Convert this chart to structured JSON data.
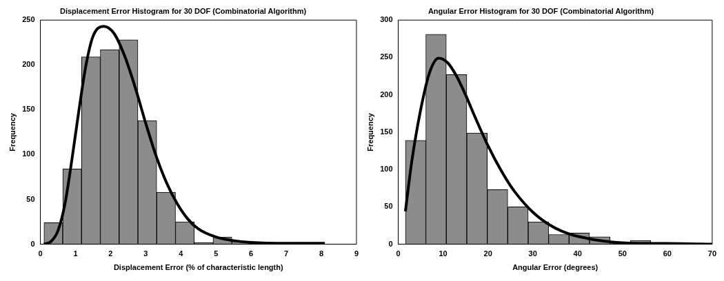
{
  "chart_data": [
    {
      "type": "histogram",
      "title": "Displacement Error Histogram for 30 DOF (Combinatorial Algorithm)",
      "xlabel": "Displacement Error (% of characteristic length)",
      "ylabel": "Frequency",
      "color": "#8c8c8c",
      "bins": [
        0.1,
        0.64,
        1.17,
        1.71,
        2.24,
        2.78,
        3.31,
        3.85,
        4.38,
        4.92,
        5.45,
        5.99,
        6.52,
        7.06,
        7.59
      ],
      "values": [
        24,
        84,
        209,
        217,
        228,
        138,
        58,
        25,
        2,
        8,
        3,
        null,
        1,
        1
      ],
      "series": [
        {
          "type": "line",
          "color": "#000000",
          "x": [
            0.1,
            0.3,
            0.5,
            0.7,
            0.9,
            1.1,
            1.3,
            1.5,
            1.8,
            2.1,
            2.4,
            2.7,
            3.0,
            3.3,
            3.6,
            3.9,
            4.2,
            4.5,
            5.0,
            5.5,
            6.0,
            7.0,
            8.1
          ],
          "values": [
            0,
            3,
            15,
            45,
            95,
            150,
            200,
            232,
            243,
            235,
            210,
            175,
            135,
            98,
            68,
            45,
            28,
            17,
            8,
            4,
            2,
            1,
            1
          ]
        }
      ],
      "xlim": [
        0,
        9
      ],
      "xticks": [
        0,
        1,
        2,
        3,
        4,
        5,
        6,
        7,
        8,
        9
      ],
      "ylim": [
        0,
        250
      ],
      "yticks": [
        0,
        50,
        100,
        150,
        200,
        250
      ],
      "grid": false,
      "legend": false
    },
    {
      "type": "histogram",
      "title": "Angular Error Histogram for 30 DOF (Combinatorial Algorithm)",
      "xlabel": "Angular Error (degrees)",
      "ylabel": "Frequency",
      "color": "#8c8c8c",
      "bins": [
        1.6,
        6.15,
        10.7,
        15.3,
        19.85,
        24.4,
        29.0,
        33.5,
        38.1,
        42.65,
        47.2,
        51.8,
        56.3,
        60.9,
        65.4,
        70.0
      ],
      "values": [
        139,
        281,
        227,
        149,
        73,
        50,
        30,
        13,
        15,
        10,
        3,
        5,
        1,
        1,
        1
      ],
      "series": [
        {
          "type": "line",
          "color": "#000000",
          "x": [
            1.6,
            3,
            5,
            7,
            9,
            11,
            13,
            15,
            17,
            20,
            23,
            26,
            30,
            34,
            38,
            42,
            46,
            50,
            55,
            60,
            70
          ],
          "values": [
            44,
            110,
            180,
            230,
            249,
            243,
            225,
            200,
            172,
            132,
            98,
            70,
            43,
            25,
            14,
            8,
            4,
            2,
            1,
            1,
            0
          ]
        }
      ],
      "xlim": [
        0,
        70
      ],
      "xticks": [
        0,
        10,
        20,
        30,
        40,
        50,
        60,
        70
      ],
      "ylim": [
        0,
        300
      ],
      "yticks": [
        0,
        50,
        100,
        150,
        200,
        250,
        300
      ],
      "grid": false,
      "legend": false
    }
  ]
}
